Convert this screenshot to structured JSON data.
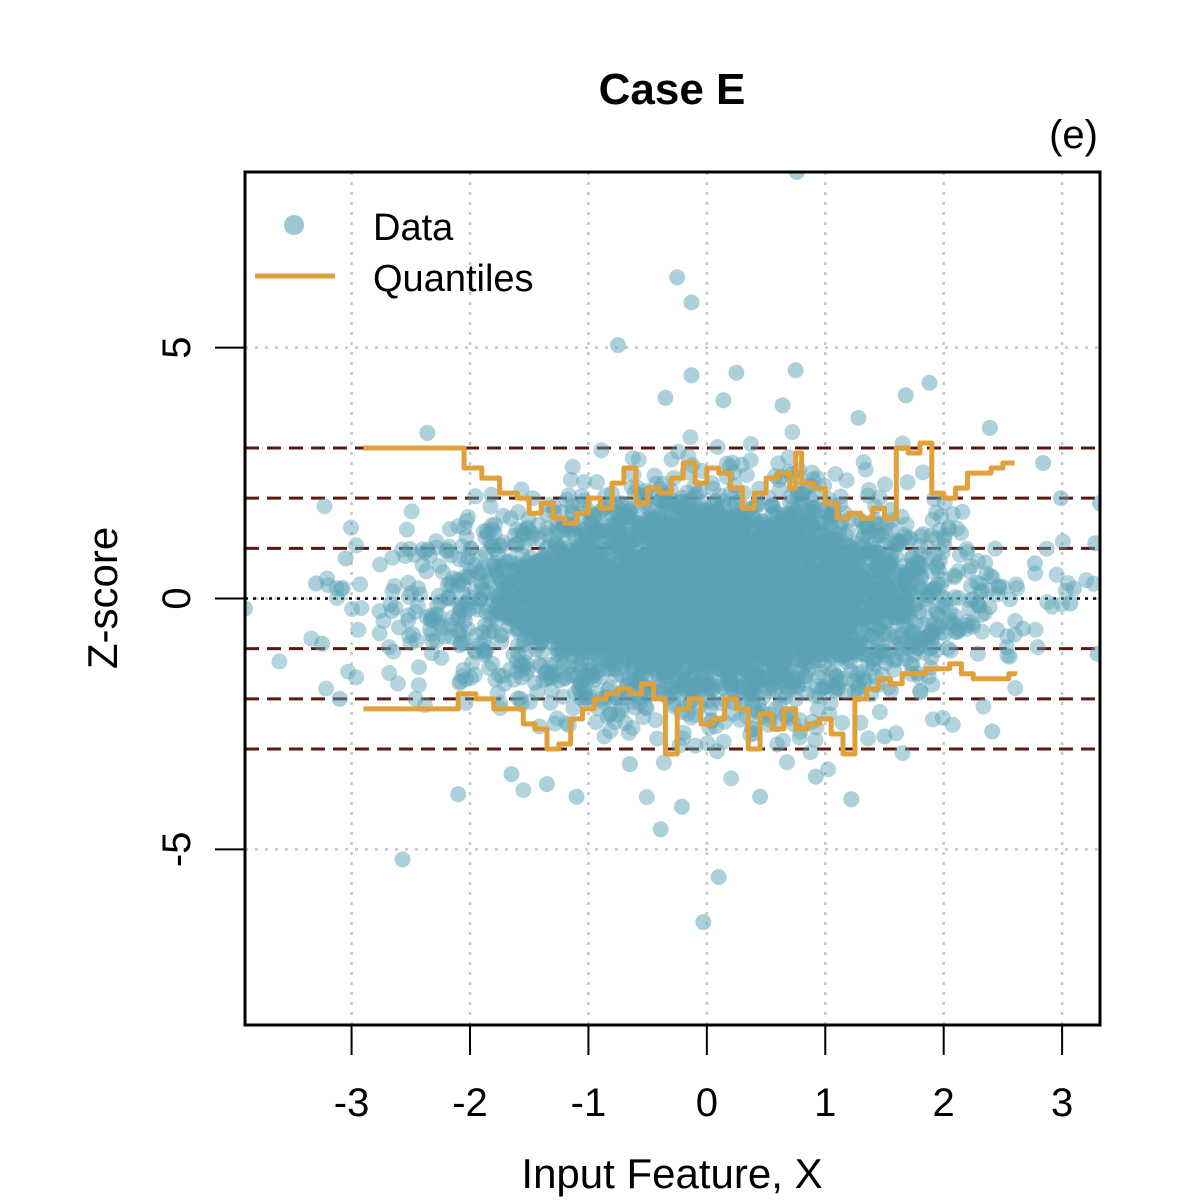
{
  "chart_data": {
    "type": "scatter",
    "title": "Case E",
    "panel_label": "(e)",
    "xlabel": "Input Feature, X",
    "ylabel": "Z-score",
    "xlim": [
      -3.9,
      3.32
    ],
    "ylim": [
      -8.5,
      8.5
    ],
    "x_ticks": [
      -3,
      -2,
      -1,
      0,
      1,
      2,
      3
    ],
    "x_tick_labels": [
      "-3",
      "-2",
      "-1",
      "0",
      "1",
      "2",
      "3"
    ],
    "y_ticks": [
      -5,
      0,
      5
    ],
    "y_tick_labels": [
      "-5",
      "0",
      "5"
    ],
    "grid": true,
    "legend": {
      "position": "top-left",
      "entries": [
        {
          "label": "Data",
          "style": "point",
          "color": "#5aa2b5"
        },
        {
          "label": "Quantiles",
          "style": "line",
          "color": "#e0a03a"
        }
      ]
    },
    "colors": {
      "data": "#5aa2b5",
      "quantiles": "#e0a03a",
      "reference_lines": "#5a1a10",
      "zero_line": "#000000",
      "grid": "#c8c8c8"
    },
    "reference_lines": [
      -3,
      -2,
      -1,
      1,
      2,
      3
    ],
    "zero_line": 0,
    "series": [
      {
        "name": "Data",
        "kind": "points",
        "core_cloud": {
          "x_mean": 0.0,
          "x_sd": 1.0,
          "y_sd": 1.0,
          "n": 5000
        },
        "outliers": [
          [
            0.76,
            8.5
          ],
          [
            -0.25,
            6.4
          ],
          [
            -0.13,
            5.9
          ],
          [
            -0.75,
            5.05
          ],
          [
            -0.13,
            4.45
          ],
          [
            0.25,
            4.5
          ],
          [
            0.75,
            4.55
          ],
          [
            1.88,
            4.3
          ],
          [
            1.68,
            4.05
          ],
          [
            -0.35,
            4.0
          ],
          [
            0.14,
            3.95
          ],
          [
            0.64,
            3.85
          ],
          [
            1.28,
            3.6
          ],
          [
            -2.36,
            3.3
          ],
          [
            2.39,
            3.4
          ],
          [
            2.84,
            2.7
          ],
          [
            2.99,
            2.0
          ],
          [
            3.32,
            1.9
          ],
          [
            3.28,
            1.1
          ],
          [
            -3.05,
            0.8
          ],
          [
            -3.3,
            0.3
          ],
          [
            -3.25,
            -0.9
          ],
          [
            -3.1,
            -2.0
          ],
          [
            -2.57,
            -5.2
          ],
          [
            -2.1,
            -3.9
          ],
          [
            -0.39,
            -4.6
          ],
          [
            -0.21,
            -4.15
          ],
          [
            0.1,
            -5.55
          ],
          [
            -0.03,
            -6.45
          ],
          [
            0.45,
            -3.95
          ],
          [
            1.22,
            -4.0
          ],
          [
            -1.35,
            -3.7
          ],
          [
            -1.1,
            -3.95
          ],
          [
            2.41,
            -2.65
          ],
          [
            3.07,
            -0.1
          ],
          [
            3.3,
            -1.1
          ],
          [
            -3.9,
            -0.2
          ],
          [
            3.1,
            0.2
          ],
          [
            -1.65,
            -3.5
          ],
          [
            0.92,
            -3.55
          ],
          [
            1.5,
            -2.75
          ],
          [
            -0.65,
            -3.3
          ],
          [
            2.67,
            -0.6
          ],
          [
            2.77,
            0.7
          ]
        ]
      },
      {
        "name": "Quantiles",
        "kind": "upper",
        "x": [
          -2.9,
          -2.6,
          -2.35,
          -2.1,
          -2.05,
          -1.9,
          -1.75,
          -1.6,
          -1.5,
          -1.4,
          -1.3,
          -1.2,
          -1.1,
          -1.0,
          -0.9,
          -0.8,
          -0.7,
          -0.6,
          -0.5,
          -0.4,
          -0.3,
          -0.2,
          -0.1,
          0.0,
          0.1,
          0.2,
          0.3,
          0.4,
          0.5,
          0.6,
          0.7,
          0.75,
          0.8,
          0.9,
          1.0,
          1.1,
          1.2,
          1.3,
          1.4,
          1.5,
          1.6,
          1.7,
          1.8,
          1.9,
          2.0,
          2.1,
          2.2,
          2.3,
          2.4,
          2.5,
          2.6
        ],
        "y": [
          3.0,
          3.0,
          3.0,
          3.0,
          2.6,
          2.4,
          2.1,
          2.0,
          1.7,
          1.9,
          1.6,
          1.5,
          1.7,
          2.0,
          1.8,
          2.3,
          2.6,
          1.9,
          2.2,
          2.1,
          2.4,
          2.7,
          2.3,
          2.6,
          2.5,
          2.2,
          1.8,
          2.1,
          2.4,
          2.5,
          2.2,
          2.9,
          2.3,
          2.2,
          1.9,
          1.6,
          1.7,
          1.6,
          1.8,
          1.6,
          3.0,
          2.9,
          3.1,
          2.1,
          2.0,
          2.2,
          2.5,
          2.5,
          2.6,
          2.7,
          2.7
        ]
      },
      {
        "name": "Quantiles",
        "kind": "lower",
        "x": [
          -2.9,
          -2.6,
          -2.35,
          -2.1,
          -1.95,
          -1.8,
          -1.65,
          -1.55,
          -1.45,
          -1.35,
          -1.25,
          -1.15,
          -1.05,
          -0.95,
          -0.85,
          -0.75,
          -0.65,
          -0.55,
          -0.45,
          -0.35,
          -0.25,
          -0.15,
          -0.05,
          0.05,
          0.15,
          0.25,
          0.35,
          0.45,
          0.55,
          0.65,
          0.75,
          0.85,
          0.95,
          1.05,
          1.15,
          1.25,
          1.35,
          1.45,
          1.55,
          1.65,
          1.75,
          1.85,
          1.95,
          2.05,
          2.15,
          2.25,
          2.35,
          2.45,
          2.55,
          2.6
        ],
        "y": [
          -2.2,
          -2.2,
          -2.2,
          -1.9,
          -2.0,
          -2.2,
          -2.2,
          -2.5,
          -2.6,
          -3.0,
          -2.9,
          -2.4,
          -2.2,
          -2.0,
          -1.9,
          -1.8,
          -1.9,
          -1.7,
          -2.0,
          -3.1,
          -2.2,
          -2.0,
          -2.5,
          -2.4,
          -2.0,
          -2.2,
          -3.0,
          -2.3,
          -2.6,
          -2.2,
          -2.6,
          -2.5,
          -2.4,
          -2.7,
          -3.1,
          -2.0,
          -1.8,
          -1.6,
          -1.7,
          -1.5,
          -1.5,
          -1.4,
          -1.4,
          -1.3,
          -1.5,
          -1.6,
          -1.6,
          -1.6,
          -1.5,
          -1.45
        ]
      }
    ]
  }
}
